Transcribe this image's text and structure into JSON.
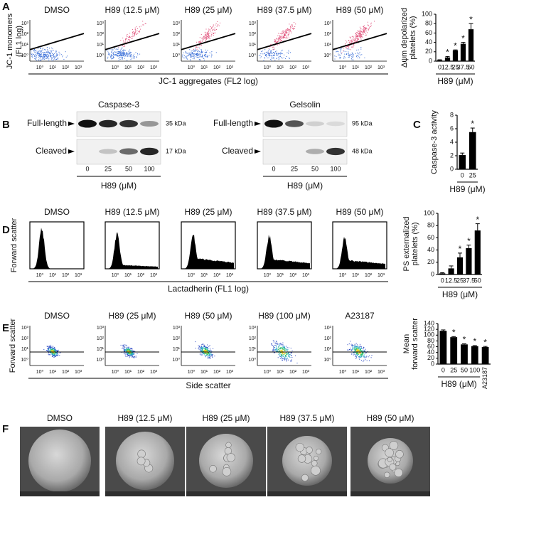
{
  "panel_letters": [
    "A",
    "B",
    "C",
    "D",
    "E",
    "F"
  ],
  "decade_ticks": [
    "10⁰",
    "10¹",
    "10²",
    "10³"
  ],
  "flow_a": {
    "titles": [
      "DMSO",
      "H89 (12.5 μM)",
      "H89 (25 μM)",
      "H89 (37.5 μM)",
      "H89 (50 μM)"
    ],
    "y_label": [
      "JC-1 monomers",
      "(FL1 log)"
    ],
    "x_label": "JC-1 aggregates (FL2 log)"
  },
  "blot": {
    "panels": [
      {
        "title": "Caspase-3",
        "kda": [
          "35 kDa",
          "17 kDa"
        ]
      },
      {
        "title": "Gelsolin",
        "kda": [
          "95 kDa",
          "48 kDa"
        ]
      }
    ],
    "rows": [
      "Full-length",
      "Cleaved"
    ],
    "lanes": [
      "0",
      "25",
      "50",
      "100"
    ],
    "x_label": "H89 (μM)"
  },
  "flow_d": {
    "titles": [
      "DMSO",
      "H89 (12.5 μM)",
      "H89 (25 μM)",
      "H89 (37.5 μM)",
      "H89 (50 μM)"
    ],
    "y_label": "Forward scatter",
    "x_label": "Lactadherin (FL1 log)"
  },
  "flow_e": {
    "titles": [
      "DMSO",
      "H89 (25 μM)",
      "H89 (50 μM)",
      "H89 (100 μM)",
      "A23187"
    ],
    "y_label": "Forward scatter",
    "x_label": "Side scatter"
  },
  "sem": {
    "titles": [
      "DMSO",
      "H89 (12.5 μM)",
      "H89 (25 μM)",
      "H89 (37.5 μM)",
      "H89 (50 μM)"
    ]
  },
  "chart_data": [
    {
      "type": "bar",
      "ylabel": [
        "Δψm depolarized",
        "platelets (%)"
      ],
      "xlabel": "H89 (μM)",
      "categories": [
        "0",
        "12.5",
        "25",
        "37.5",
        "50"
      ],
      "values": [
        2,
        8,
        23,
        37,
        68
      ],
      "errors": [
        1,
        2,
        1,
        3,
        12
      ],
      "significance": [
        null,
        "*",
        "*",
        "*",
        "*"
      ],
      "color": "#000000",
      "ylim": [
        0,
        100
      ],
      "yticks": [
        0,
        20,
        40,
        60,
        80,
        100
      ]
    },
    {
      "type": "bar",
      "ylabel": [
        "Caspase-3 activity"
      ],
      "xlabel": "H89 (μM)",
      "categories": [
        "0",
        "25"
      ],
      "values": [
        2.1,
        5.5
      ],
      "errors": [
        0.3,
        0.6
      ],
      "significance": [
        null,
        "*"
      ],
      "color": "#000000",
      "ylim": [
        0,
        8
      ],
      "yticks": [
        0,
        2,
        4,
        6,
        8
      ]
    },
    {
      "type": "bar",
      "ylabel": [
        "PS externalized",
        "platelets (%)"
      ],
      "xlabel": "H89 (μM)",
      "categories": [
        "0",
        "12.5",
        "25",
        "37.5",
        "50"
      ],
      "values": [
        2,
        10,
        28,
        43,
        72
      ],
      "errors": [
        1,
        4,
        7,
        5,
        11
      ],
      "significance": [
        null,
        null,
        "*",
        "*",
        "*"
      ],
      "color": "#000000",
      "ylim": [
        0,
        100
      ],
      "yticks": [
        0,
        20,
        40,
        60,
        80,
        100
      ]
    },
    {
      "type": "bar",
      "ylabel": [
        "Mean",
        "forward scatter"
      ],
      "xlabel": "H89 (μM)",
      "categories": [
        "0",
        "25",
        "50",
        "100",
        "A23187"
      ],
      "values": [
        115,
        93,
        68,
        62,
        59
      ],
      "errors": [
        3,
        2,
        2,
        2,
        2
      ],
      "significance": [
        null,
        "*",
        "*",
        "*",
        "*"
      ],
      "color": "#000000",
      "ylim": [
        0,
        140
      ],
      "yticks": [
        0,
        20,
        40,
        60,
        80,
        100,
        120,
        140
      ]
    }
  ]
}
